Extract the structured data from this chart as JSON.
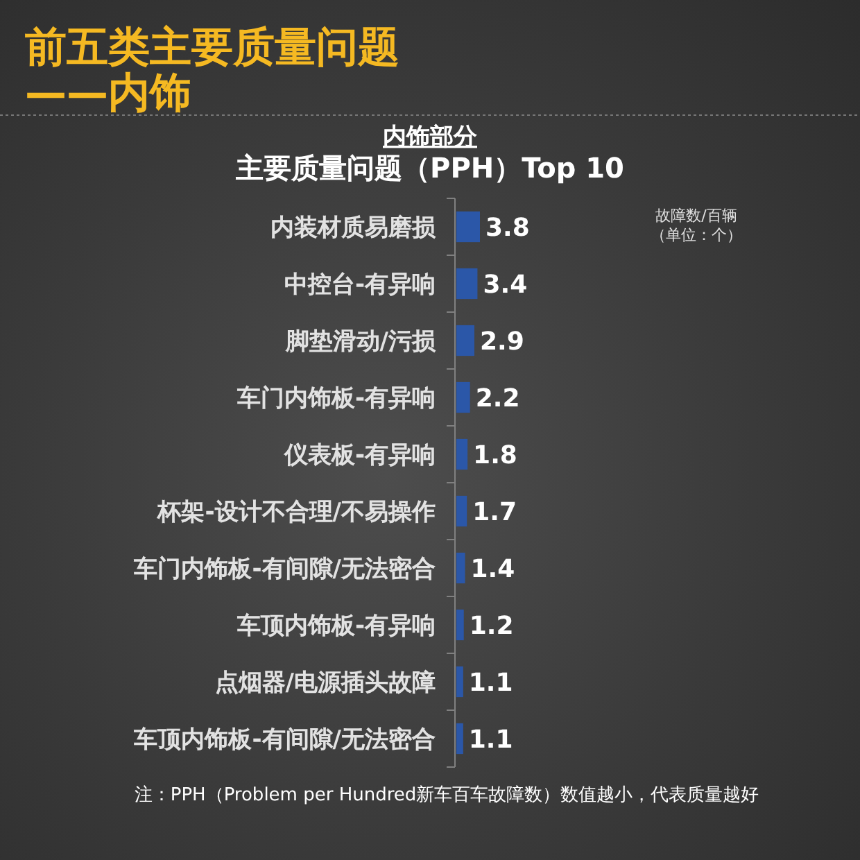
{
  "chart_data": {
    "type": "bar",
    "orientation": "horizontal",
    "title": "前五类主要质量问题\n——内饰",
    "subtitle": "主要质量问题（PPH）Top 10",
    "categories": [
      "内装材质易磨损",
      "中控台-有异响",
      "脚垫滑动/污损",
      "车门内饰板-有异响",
      "仪表板-有异响",
      "杯架-设计不合理/不易操作",
      "车门内饰板-有间隙/无法密合",
      "车顶内饰板-有异响",
      "点烟器/电源插头故障",
      "车顶内饰板-有间隙/无法密合"
    ],
    "values": [
      3.8,
      3.4,
      2.9,
      2.2,
      1.8,
      1.7,
      1.4,
      1.2,
      1.1,
      1.1
    ],
    "color": "#2b57a8",
    "data_labels": true,
    "annotations": [
      "内饰部分",
      "故障数/百辆",
      "（单位：个）",
      "注：PPH（Problem per Hundred新车百车故障数）数值越小，代表质量越好"
    ]
  }
}
